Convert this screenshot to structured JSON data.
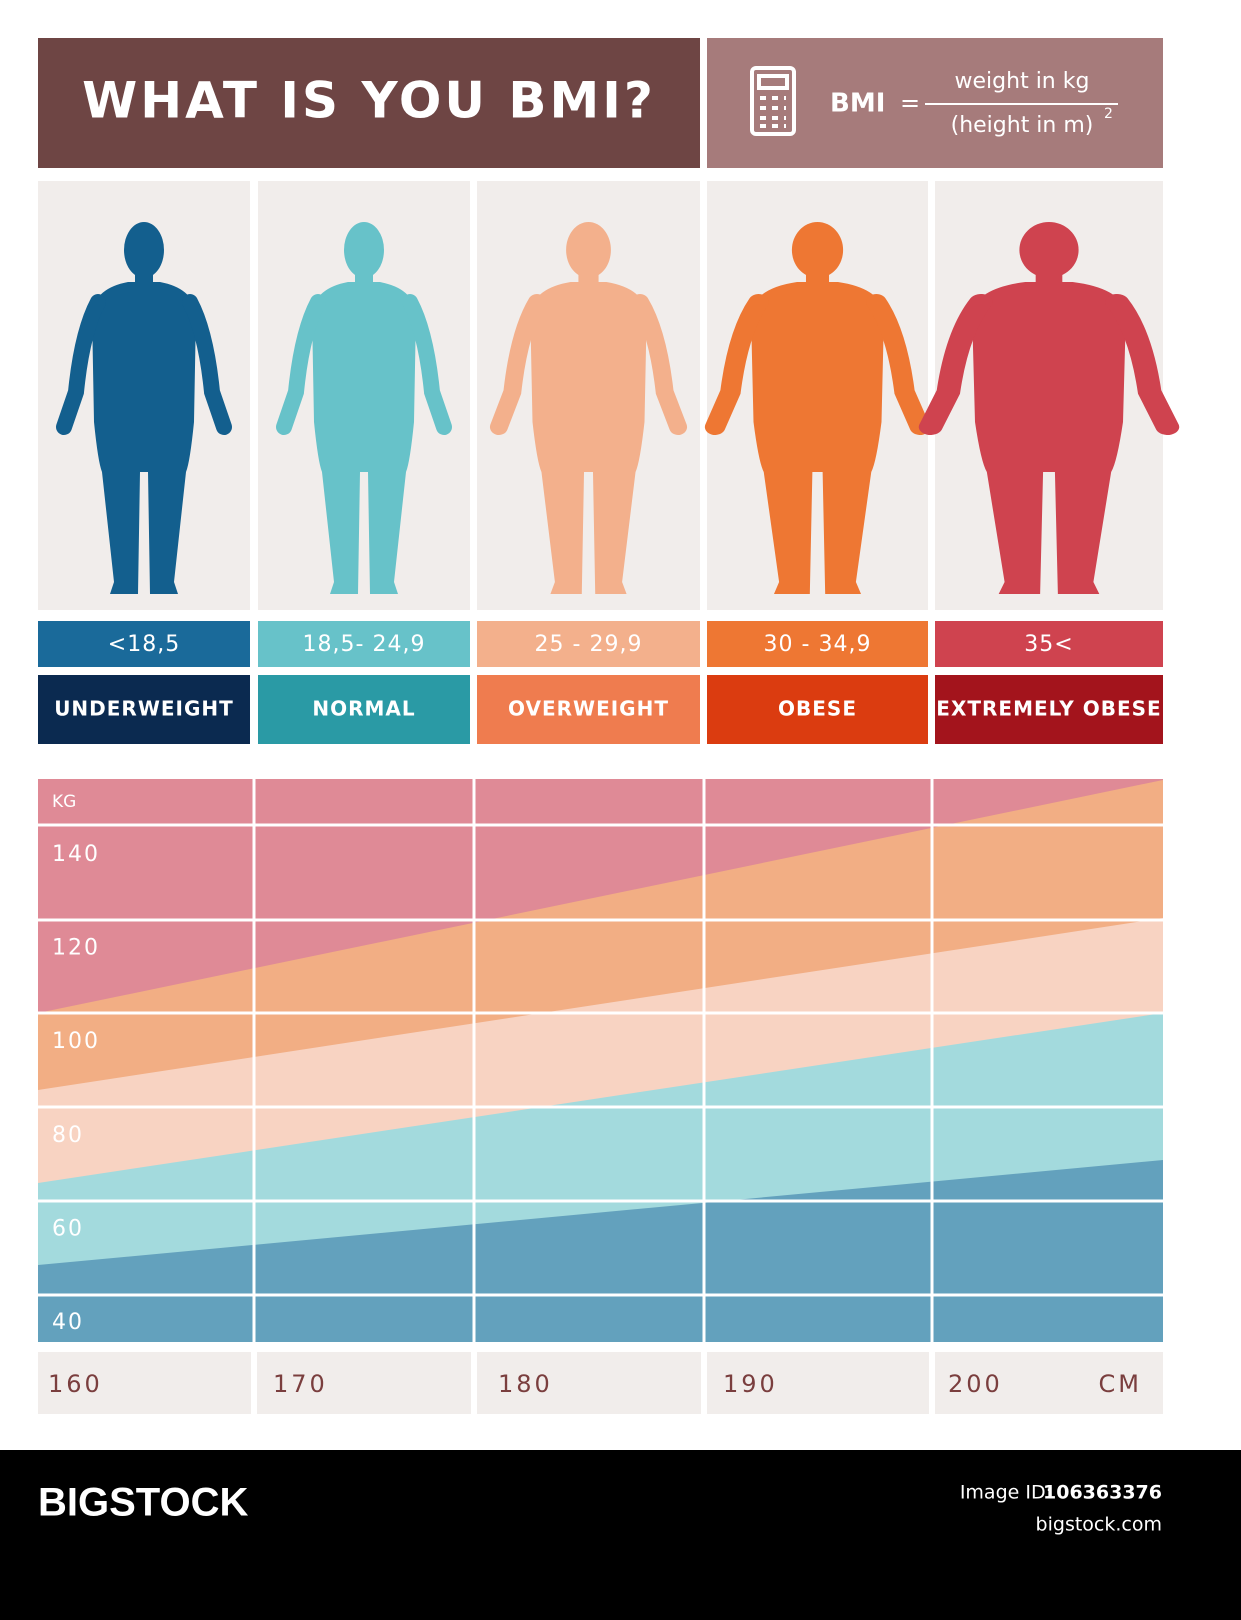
{
  "header": {
    "title": "WHAT IS YOU BMI?",
    "formula": {
      "lhs": "BMI",
      "eq": "=",
      "numerator": "weight in kg",
      "denominator": "(height in m)",
      "exponent": "2"
    }
  },
  "categories": [
    {
      "range": "<18,5",
      "label": "UNDERWEIGHT"
    },
    {
      "range": "18,5- 24,9",
      "label": "NORMAL"
    },
    {
      "range": "25 - 29,9",
      "label": "OVERWEIGHT"
    },
    {
      "range": "30 - 34,9",
      "label": "OBESE"
    },
    {
      "range": "35<",
      "label": "EXTREMELY OBESE"
    }
  ],
  "chart": {
    "y_unit": "KG",
    "yticks": [
      140,
      120,
      100,
      80,
      60,
      40
    ],
    "x_unit": "CM",
    "xticks": [
      160,
      170,
      180,
      190,
      200
    ]
  },
  "footer": {
    "brand": "BIGSTOCK",
    "image_id_label": "Image ID:",
    "image_id": "106363376",
    "site": "bigstock.com"
  }
}
